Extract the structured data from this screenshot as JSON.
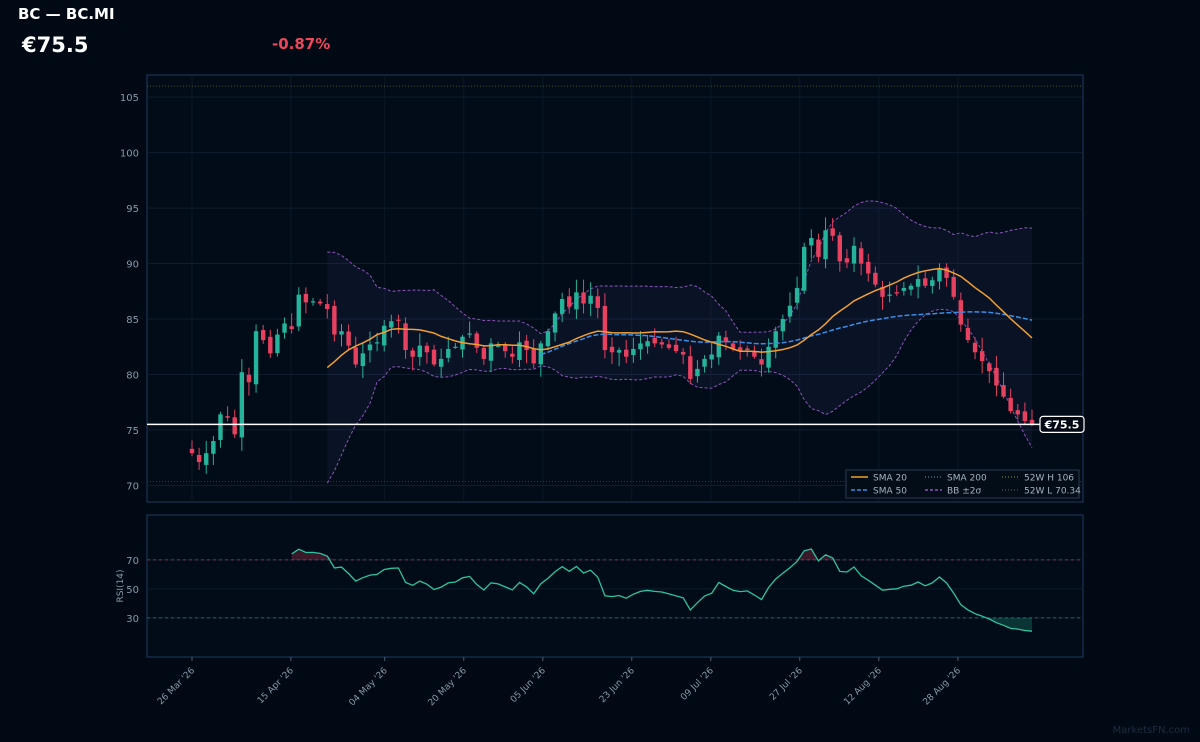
{
  "header": {
    "ticker": "BC — BC.MI",
    "price": "€75.5",
    "change": "-0.87%"
  },
  "watermark": "MarketsFN.com",
  "colors": {
    "up": "#26b39b",
    "down": "#e84160",
    "sma20": "#f0a030",
    "sma50": "#3a8ee6",
    "bb": "#8a56b8",
    "rsi": "#2ec4a0",
    "last_price": "#ffffff"
  },
  "chart_data": [
    {
      "type": "candlestick",
      "title": "BC — BC.MI",
      "ylim": [
        68.5,
        107
      ],
      "yticks": [
        70,
        75,
        80,
        85,
        90,
        95,
        100,
        105
      ],
      "x_start": "2026-03-26",
      "x_end": "2026-09-12",
      "x_ticks": [
        "2026-03-26",
        "2026-04-15",
        "2026-05-04",
        "2026-05-20",
        "2026-06-05",
        "2026-06-23",
        "2026-07-09",
        "2026-07-27",
        "2026-08-12",
        "2026-08-28"
      ],
      "x_tick_labels": [
        "26 Mar '26",
        "15 Apr '26",
        "04 May '26",
        "20 May '26",
        "05 Jun '26",
        "23 Jun '26",
        "09 Jul '26",
        "27 Jul '26",
        "12 Aug '26",
        "28 Aug '26"
      ],
      "closes": [
        72.9,
        72.1,
        72.9,
        74.0,
        76.4,
        76.1,
        74.6,
        80.2,
        79.3,
        83.9,
        83.1,
        81.9,
        83.6,
        84.6,
        84.1,
        87.2,
        86.5,
        86.6,
        86.4,
        85.9,
        83.6,
        83.9,
        82.6,
        80.9,
        81.9,
        82.7,
        82.9,
        84.4,
        84.8,
        84.9,
        82.2,
        81.6,
        82.6,
        82.0,
        80.9,
        81.4,
        82.3,
        82.5,
        83.4,
        83.7,
        82.4,
        81.4,
        82.8,
        82.6,
        82.1,
        81.6,
        82.9,
        82.2,
        81.0,
        82.8,
        83.9,
        85.5,
        86.8,
        86.1,
        87.4,
        86.4,
        87.1,
        86.0,
        82.2,
        82.0,
        82.2,
        81.6,
        82.3,
        82.8,
        83.0,
        82.8,
        82.7,
        82.4,
        82.1,
        81.8,
        79.6,
        80.5,
        81.4,
        81.8,
        83.5,
        82.9,
        82.3,
        82.1,
        82.2,
        81.6,
        80.9,
        82.5,
        83.9,
        85.0,
        86.2,
        87.8,
        91.5,
        92.3,
        90.6,
        93.0,
        92.5,
        90.2,
        90.1,
        91.6,
        90.0,
        89.1,
        88.1,
        87.0,
        87.2,
        87.3,
        87.8,
        88.0,
        88.6,
        88.0,
        88.5,
        89.6,
        88.7,
        87.0,
        84.5,
        83.1,
        82.0,
        81.2,
        80.3,
        79.0,
        78.0,
        76.7,
        76.4,
        75.8,
        75.5
      ],
      "sma20_start_index": 19,
      "sma50_start_index": 49,
      "bollinger_k": 2,
      "last_price": 75.5,
      "last_price_label": "€75.5",
      "high_52w": 106,
      "low_52w": 70.34,
      "legend_position": "bottom-right",
      "legend": [
        "SMA 20",
        "SMA 50",
        "SMA 200",
        "BB ±2σ",
        "52W H 106",
        "52W L 70.34"
      ]
    },
    {
      "type": "line",
      "ylabel": "RSI(14)",
      "ylim": [
        3,
        101
      ],
      "yticks": [
        30,
        50,
        70
      ],
      "overbought": 70,
      "oversold": 30,
      "start_index": 14
    }
  ]
}
